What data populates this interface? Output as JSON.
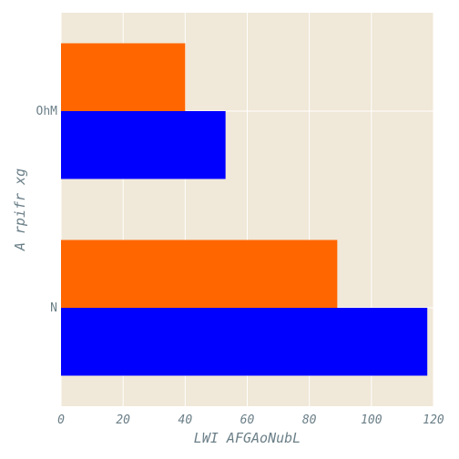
{
  "chart_data": {
    "type": "bar",
    "orientation": "horizontal",
    "title": "",
    "xlabel": "LWI AFGAoNubL",
    "ylabel": "A rpifr xg",
    "categories": [
      "N",
      "OhM"
    ],
    "series": [
      {
        "values": [
          118,
          53
        ],
        "color": "#0000ff"
      },
      {
        "values": [
          89,
          40
        ],
        "color": "#ff6600"
      }
    ],
    "xlim": [
      0,
      120
    ],
    "x_ticks": [
      0,
      20,
      40,
      60,
      80,
      100,
      120
    ],
    "grid": true,
    "legend": "none",
    "background_color": "#f0e8d8",
    "grid_color": "#ffffff"
  }
}
